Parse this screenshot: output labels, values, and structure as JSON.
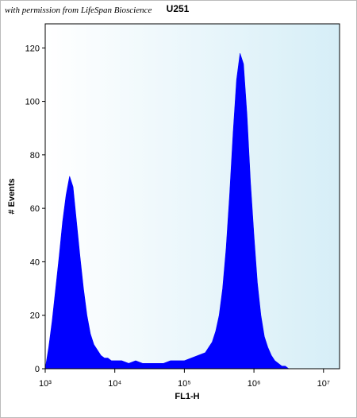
{
  "chart_data": {
    "type": "area",
    "title": "U251",
    "annotation": "with permission from LifeSpan Bioscience",
    "x_label": "FL1-H",
    "y_label": "# Events",
    "x_log": true,
    "color": "#0000ff",
    "xlim": [
      1000,
      17000000
    ],
    "ylim": [
      0,
      129
    ],
    "xticks": [
      {
        "value": 1000,
        "label": "10³"
      },
      {
        "value": 10000,
        "label": "10⁴"
      },
      {
        "value": 100000,
        "label": "10⁵"
      },
      {
        "value": 1000000,
        "label": "10⁶"
      },
      {
        "value": 10000000,
        "label": "10⁷"
      }
    ],
    "yticks": [
      0,
      20,
      40,
      60,
      80,
      100,
      120
    ],
    "x": [
      1000,
      1122,
      1259,
      1413,
      1585,
      1778,
      1995,
      2239,
      2512,
      2818,
      3162,
      3548,
      3981,
      4467,
      5012,
      5623,
      6310,
      7079,
      7943,
      8913,
      10000,
      12589,
      15849,
      19953,
      25119,
      31623,
      39811,
      50119,
      63096,
      79433,
      100000,
      125893,
      158489,
      199526,
      223872,
      251189,
      281838,
      316228,
      354813,
      398107,
      446684,
      501187,
      562341,
      630957,
      707946,
      794328,
      891251,
      1000000,
      1122018,
      1258925,
      1412538,
      1584893,
      1778279,
      1995262,
      2238721,
      2511886,
      2818383,
      3162278,
      3981072,
      5011872,
      6309573,
      7943282,
      10000000
    ],
    "values": [
      0,
      8,
      18,
      30,
      42,
      55,
      65,
      72,
      68,
      55,
      42,
      30,
      20,
      13,
      9,
      7,
      5,
      4,
      4,
      3,
      3,
      3,
      2,
      3,
      2,
      2,
      2,
      2,
      3,
      3,
      3,
      4,
      5,
      6,
      8,
      10,
      14,
      20,
      30,
      45,
      65,
      88,
      108,
      118,
      114,
      95,
      70,
      50,
      32,
      20,
      12,
      8,
      5,
      3,
      2,
      1,
      1,
      0,
      0,
      0,
      0,
      0,
      0
    ]
  }
}
